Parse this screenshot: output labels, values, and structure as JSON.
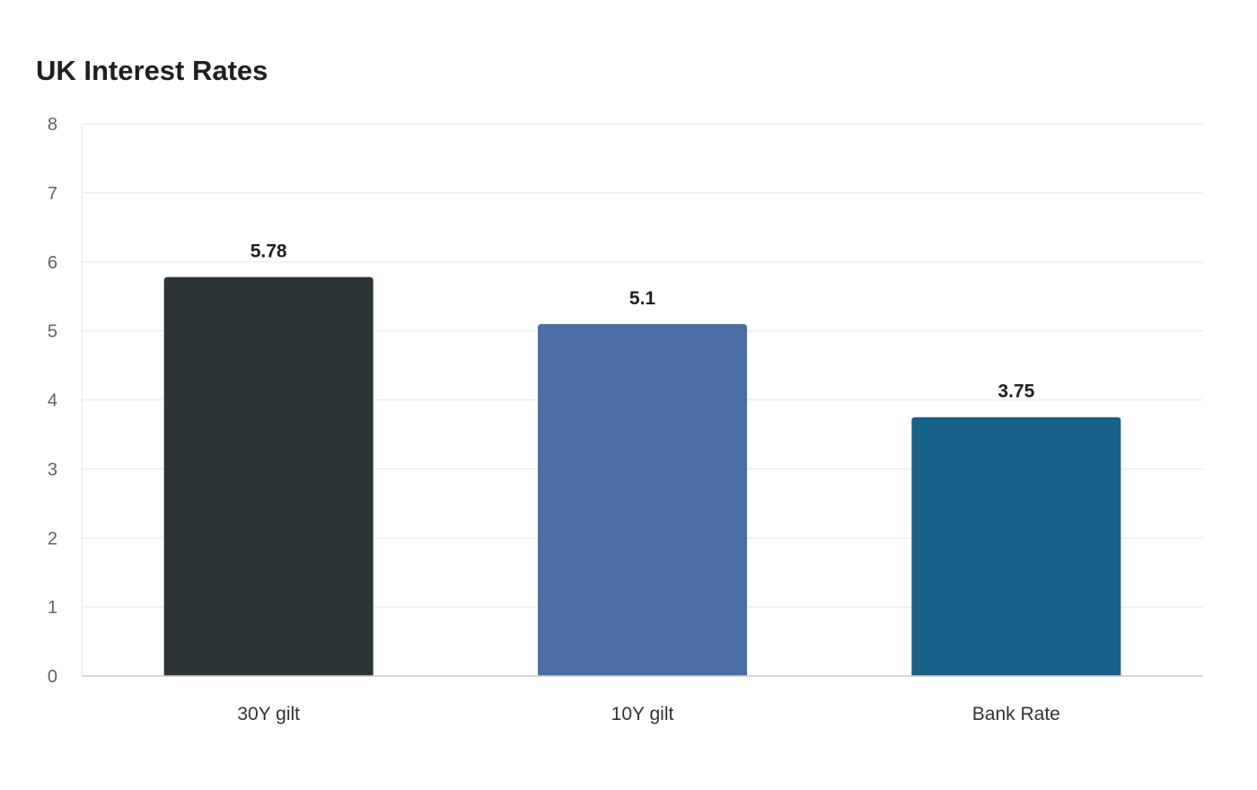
{
  "chart_data": {
    "type": "bar",
    "title": "UK Interest Rates",
    "categories": [
      "30Y gilt",
      "10Y gilt",
      "Bank Rate"
    ],
    "values": [
      5.78,
      5.1,
      3.75
    ],
    "data_labels": [
      "5.78",
      "5.1",
      "3.75"
    ],
    "bar_colors": [
      "#2c3437",
      "#4a6ea3",
      "#176087"
    ],
    "ylim": [
      0,
      8
    ],
    "yticks": [
      0,
      1,
      2,
      3,
      4,
      5,
      6,
      7,
      8
    ],
    "xlabel": "",
    "ylabel": "",
    "grid": true,
    "legend": false
  }
}
